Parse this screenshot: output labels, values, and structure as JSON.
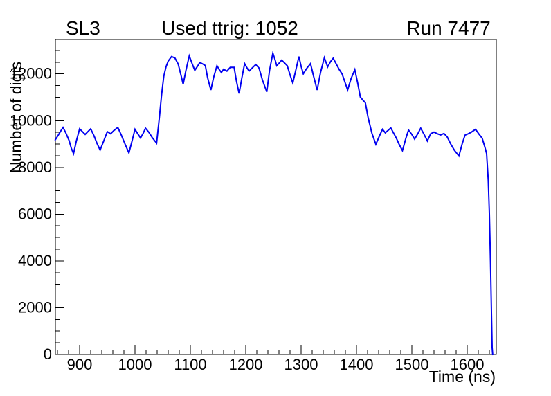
{
  "chart_data": {
    "type": "line",
    "title_left": "SL3",
    "title_center": "Used ttrig: 1052",
    "title_right": "Run 7477",
    "xlabel": "Time (ns)",
    "ylabel": "Number of digis",
    "xlim": [
      856.25,
      1652.5
    ],
    "ylim": [
      0,
      13472
    ],
    "x_major_ticks": [
      900,
      1000,
      1100,
      1200,
      1300,
      1400,
      1500,
      1600
    ],
    "x_minor_step": 20,
    "y_major_ticks": [
      0,
      2000,
      4000,
      6000,
      8000,
      10000,
      12000
    ],
    "y_minor_step": 500,
    "grid": false,
    "legend": false,
    "background_color": "#ffffff",
    "frame_color": "#000000",
    "line_color": "#0000f0",
    "series": [
      {
        "name": "number-of-digis-vs-time",
        "points": [
          [
            856,
            9180
          ],
          [
            862,
            9400
          ],
          [
            866,
            9560
          ],
          [
            870,
            9710
          ],
          [
            875,
            9480
          ],
          [
            881,
            9150
          ],
          [
            885,
            8820
          ],
          [
            889,
            8590
          ],
          [
            894,
            9120
          ],
          [
            900,
            9650
          ],
          [
            905,
            9530
          ],
          [
            910,
            9410
          ],
          [
            915,
            9530
          ],
          [
            920,
            9650
          ],
          [
            926,
            9350
          ],
          [
            931,
            9050
          ],
          [
            937,
            8740
          ],
          [
            944,
            9160
          ],
          [
            950,
            9530
          ],
          [
            956,
            9440
          ],
          [
            962,
            9580
          ],
          [
            969,
            9710
          ],
          [
            975,
            9400
          ],
          [
            982,
            9000
          ],
          [
            989,
            8620
          ],
          [
            995,
            9160
          ],
          [
            1000,
            9630
          ],
          [
            1005,
            9440
          ],
          [
            1010,
            9260
          ],
          [
            1015,
            9470
          ],
          [
            1019,
            9680
          ],
          [
            1025,
            9500
          ],
          [
            1031,
            9280
          ],
          [
            1039,
            9040
          ],
          [
            1044,
            10130
          ],
          [
            1048,
            11100
          ],
          [
            1052,
            11900
          ],
          [
            1056,
            12300
          ],
          [
            1060,
            12550
          ],
          [
            1066,
            12740
          ],
          [
            1072,
            12680
          ],
          [
            1078,
            12420
          ],
          [
            1083,
            11950
          ],
          [
            1087,
            11560
          ],
          [
            1092,
            12150
          ],
          [
            1098,
            12770
          ],
          [
            1103,
            12450
          ],
          [
            1108,
            12150
          ],
          [
            1113,
            12330
          ],
          [
            1117,
            12490
          ],
          [
            1122,
            12430
          ],
          [
            1127,
            12360
          ],
          [
            1131,
            11850
          ],
          [
            1137,
            11310
          ],
          [
            1142,
            11850
          ],
          [
            1148,
            12350
          ],
          [
            1152,
            12190
          ],
          [
            1156,
            12060
          ],
          [
            1160,
            12200
          ],
          [
            1166,
            12120
          ],
          [
            1172,
            12280
          ],
          [
            1179,
            12280
          ],
          [
            1183,
            11720
          ],
          [
            1188,
            11160
          ],
          [
            1193,
            11830
          ],
          [
            1198,
            12440
          ],
          [
            1202,
            12270
          ],
          [
            1206,
            12120
          ],
          [
            1212,
            12260
          ],
          [
            1218,
            12400
          ],
          [
            1224,
            12250
          ],
          [
            1230,
            11750
          ],
          [
            1238,
            11230
          ],
          [
            1243,
            12150
          ],
          [
            1249,
            12890
          ],
          [
            1253,
            12600
          ],
          [
            1256,
            12350
          ],
          [
            1261,
            12480
          ],
          [
            1265,
            12590
          ],
          [
            1270,
            12470
          ],
          [
            1275,
            12350
          ],
          [
            1280,
            11960
          ],
          [
            1285,
            11610
          ],
          [
            1291,
            12220
          ],
          [
            1296,
            12740
          ],
          [
            1300,
            12330
          ],
          [
            1304,
            12000
          ],
          [
            1310,
            12230
          ],
          [
            1317,
            12440
          ],
          [
            1322,
            11950
          ],
          [
            1329,
            11310
          ],
          [
            1335,
            12050
          ],
          [
            1342,
            12690
          ],
          [
            1348,
            12300
          ],
          [
            1353,
            12520
          ],
          [
            1358,
            12670
          ],
          [
            1364,
            12400
          ],
          [
            1369,
            12180
          ],
          [
            1374,
            12000
          ],
          [
            1379,
            11660
          ],
          [
            1384,
            11310
          ],
          [
            1390,
            11780
          ],
          [
            1397,
            12180
          ],
          [
            1402,
            11630
          ],
          [
            1407,
            11010
          ],
          [
            1412,
            10870
          ],
          [
            1416,
            10770
          ],
          [
            1421,
            10130
          ],
          [
            1428,
            9450
          ],
          [
            1435,
            8990
          ],
          [
            1441,
            9320
          ],
          [
            1447,
            9630
          ],
          [
            1452,
            9480
          ],
          [
            1457,
            9580
          ],
          [
            1462,
            9690
          ],
          [
            1467,
            9470
          ],
          [
            1472,
            9250
          ],
          [
            1477,
            8990
          ],
          [
            1483,
            8720
          ],
          [
            1489,
            9230
          ],
          [
            1494,
            9600
          ],
          [
            1500,
            9410
          ],
          [
            1505,
            9210
          ],
          [
            1511,
            9450
          ],
          [
            1516,
            9680
          ],
          [
            1522,
            9420
          ],
          [
            1528,
            9130
          ],
          [
            1534,
            9440
          ],
          [
            1540,
            9510
          ],
          [
            1546,
            9440
          ],
          [
            1552,
            9390
          ],
          [
            1558,
            9450
          ],
          [
            1564,
            9300
          ],
          [
            1570,
            9010
          ],
          [
            1577,
            8730
          ],
          [
            1585,
            8490
          ],
          [
            1591,
            9020
          ],
          [
            1596,
            9380
          ],
          [
            1601,
            9430
          ],
          [
            1607,
            9500
          ],
          [
            1615,
            9630
          ],
          [
            1621,
            9430
          ],
          [
            1627,
            9250
          ],
          [
            1632,
            8860
          ],
          [
            1635,
            8590
          ],
          [
            1638,
            7450
          ],
          [
            1640,
            6030
          ],
          [
            1642,
            4000
          ],
          [
            1644,
            1500
          ],
          [
            1645,
            300
          ],
          [
            1646,
            0
          ]
        ]
      }
    ]
  }
}
